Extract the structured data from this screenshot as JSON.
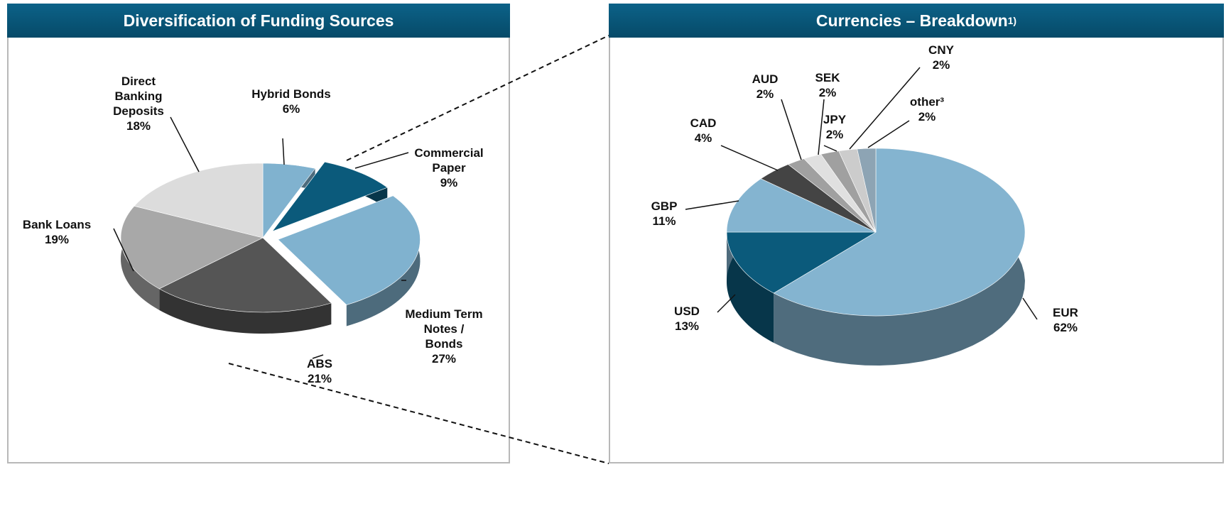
{
  "chart_data": [
    {
      "type": "pie",
      "title": "Diversification of Funding Sources",
      "categories": [
        "Hybrid Bonds",
        "Commercial Paper",
        "Medium Term Notes / Bonds",
        "ABS",
        "Bank Loans",
        "Direct Banking Deposits"
      ],
      "values": [
        6,
        9,
        27,
        21,
        19,
        18
      ],
      "value_labels": [
        "6%",
        "9%",
        "27%",
        "21%",
        "19%",
        "18%"
      ],
      "colors": [
        "#80b2cf",
        "#0b5a7b",
        "#80b2cf",
        "#555555",
        "#a8a8a8",
        "#dcdcdc"
      ]
    },
    {
      "type": "pie",
      "title": "Currencies – Breakdown",
      "title_superscript": "1)",
      "categories": [
        "EUR",
        "USD",
        "GBP",
        "CAD",
        "AUD",
        "SEK",
        "JPY",
        "CNY",
        "other³"
      ],
      "values": [
        62,
        13,
        11,
        4,
        2,
        2,
        2,
        2,
        2
      ],
      "value_labels": [
        "62%",
        "13%",
        "11%",
        "4%",
        "2%",
        "2%",
        "2%",
        "2%",
        "2%"
      ],
      "colors": [
        "#84b4d0",
        "#0b5a7b",
        "#84b4d0",
        "#444444",
        "#a0a0a0",
        "#e0e0e0",
        "#a0a0a0",
        "#cccccc",
        "#8da4b4"
      ]
    }
  ]
}
